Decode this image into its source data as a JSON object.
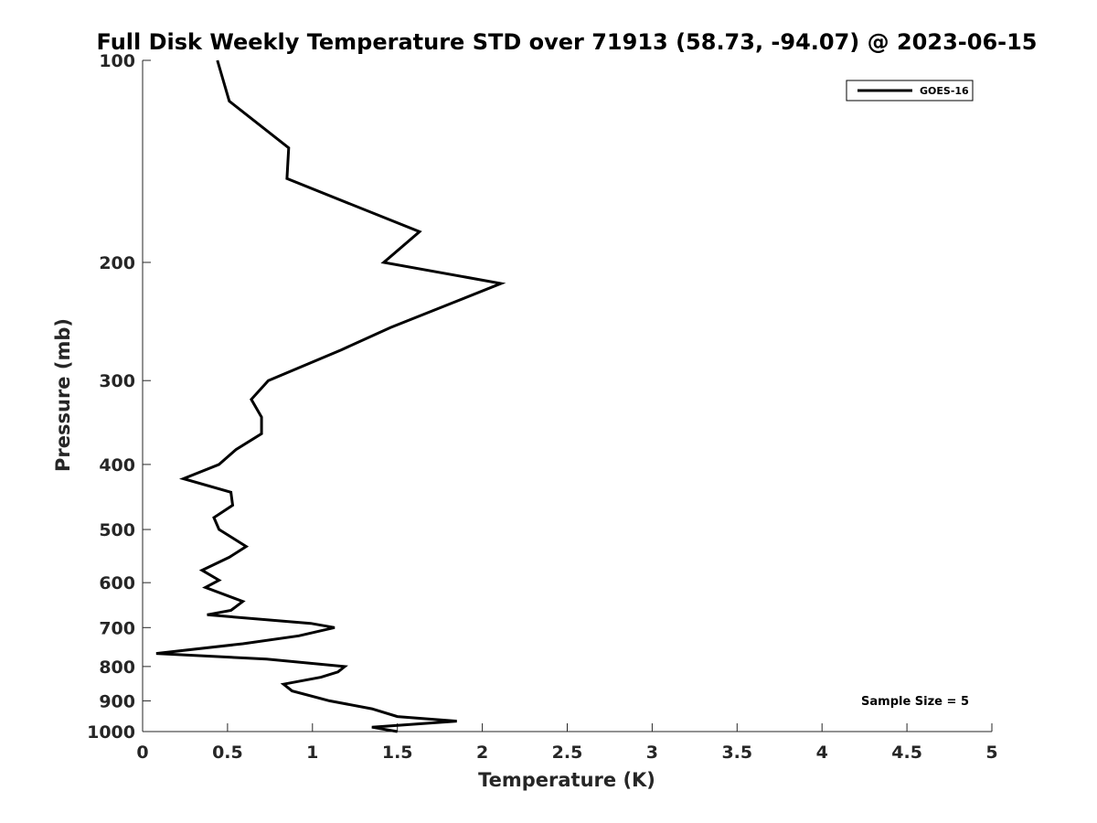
{
  "chart_data": {
    "type": "line",
    "title": "Full Disk Weekly Temperature STD over 71913 (58.73, -94.07) @ 2023-06-15",
    "xlabel": "Temperature (K)",
    "ylabel": "Pressure (mb)",
    "xlim": [
      0,
      5
    ],
    "ylim": [
      1000,
      100
    ],
    "y_scale": "log",
    "y_reversed": true,
    "grid": false,
    "legend_position": "top-right",
    "x_ticks": [
      "0",
      "0.5",
      "1",
      "1.5",
      "2",
      "2.5",
      "3",
      "3.5",
      "4",
      "4.5",
      "5"
    ],
    "y_ticks": [
      "100",
      "200",
      "300",
      "400",
      "500",
      "600",
      "700",
      "800",
      "900",
      "1000"
    ],
    "series": [
      {
        "name": "GOES-16",
        "color": "#000000",
        "points": [
          [
            0.44,
            100
          ],
          [
            0.51,
            115
          ],
          [
            0.86,
            135
          ],
          [
            0.85,
            150
          ],
          [
            1.63,
            180
          ],
          [
            1.42,
            200
          ],
          [
            2.11,
            215
          ],
          [
            1.82,
            230
          ],
          [
            1.46,
            250
          ],
          [
            1.17,
            270
          ],
          [
            0.74,
            300
          ],
          [
            0.64,
            320
          ],
          [
            0.7,
            340
          ],
          [
            0.7,
            360
          ],
          [
            0.55,
            380
          ],
          [
            0.45,
            400
          ],
          [
            0.24,
            420
          ],
          [
            0.52,
            440
          ],
          [
            0.53,
            460
          ],
          [
            0.42,
            480
          ],
          [
            0.45,
            500
          ],
          [
            0.61,
            530
          ],
          [
            0.51,
            550
          ],
          [
            0.35,
            575
          ],
          [
            0.45,
            595
          ],
          [
            0.37,
            610
          ],
          [
            0.59,
            640
          ],
          [
            0.52,
            660
          ],
          [
            0.38,
            670
          ],
          [
            0.99,
            690
          ],
          [
            1.13,
            700
          ],
          [
            0.92,
            720
          ],
          [
            0.59,
            740
          ],
          [
            0.08,
            765
          ],
          [
            0.73,
            780
          ],
          [
            1.19,
            800
          ],
          [
            1.15,
            815
          ],
          [
            1.05,
            830
          ],
          [
            0.83,
            850
          ],
          [
            0.88,
            870
          ],
          [
            1.1,
            900
          ],
          [
            1.35,
            925
          ],
          [
            1.5,
            950
          ],
          [
            1.85,
            965
          ],
          [
            1.35,
            985
          ],
          [
            1.5,
            1000
          ]
        ]
      }
    ],
    "annotation": "Sample Size = 5"
  }
}
